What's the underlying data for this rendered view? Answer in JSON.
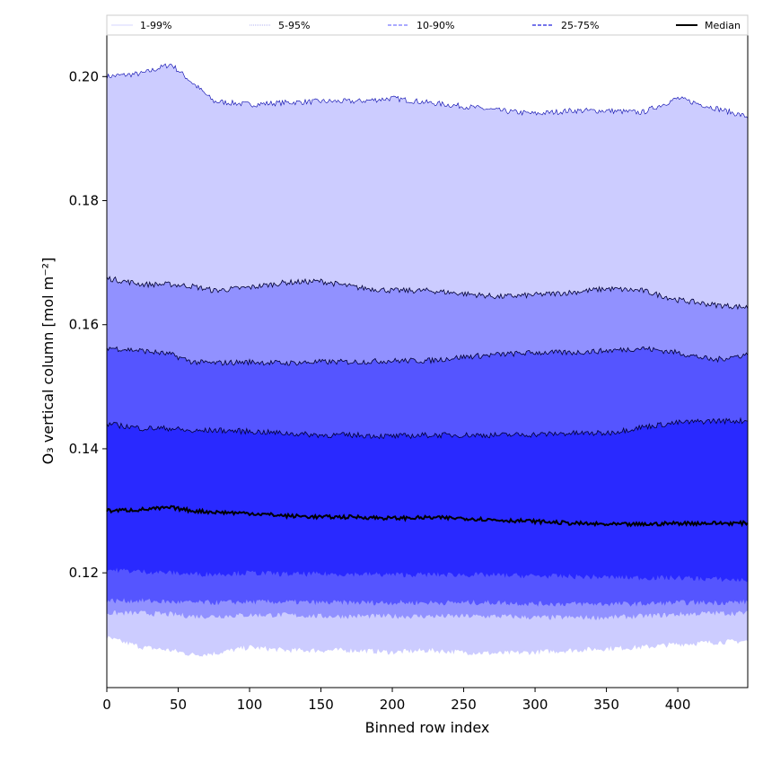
{
  "chart_data": {
    "type": "area",
    "xlabel": "Binned row index",
    "ylabel": "O₃ vertical column [mol m⁻²]",
    "xlim": [
      0,
      449
    ],
    "ylim": [
      0.1015,
      0.2067
    ],
    "xticks": [
      0,
      50,
      100,
      150,
      200,
      250,
      300,
      350,
      400
    ],
    "yticks": [
      0.12,
      0.14,
      0.16,
      0.18,
      0.2
    ],
    "ytick_labels": [
      "0.12",
      "0.14",
      "0.16",
      "0.18",
      "0.20"
    ],
    "legend_position": "top (horizontal, spanning plot)",
    "legend": [
      {
        "label": "1-99%",
        "color": "#c8c8ff",
        "style": "solid-thin"
      },
      {
        "label": "5-95%",
        "color": "#9999ee",
        "style": "dotted"
      },
      {
        "label": "10-90%",
        "color": "#7777ff",
        "style": "dashed"
      },
      {
        "label": "25-75%",
        "color": "#2222dd",
        "style": "dashed"
      },
      {
        "label": "Median",
        "color": "#000000",
        "style": "solid-thick"
      }
    ],
    "fill_colors": {
      "p1_99": "#ccccff",
      "p5_95": "#9191ff",
      "p10_90": "#5555ff",
      "p25_75": "#2929ff"
    },
    "x": [
      0,
      25,
      45,
      60,
      75,
      100,
      125,
      150,
      175,
      200,
      225,
      250,
      275,
      300,
      325,
      350,
      375,
      400,
      425,
      449
    ],
    "series": [
      {
        "name": "1-99%",
        "lower": [
          0.1095,
          0.108,
          0.1075,
          0.1068,
          0.107,
          0.108,
          0.1075,
          0.1075,
          0.1075,
          0.1072,
          0.1075,
          0.1072,
          0.107,
          0.1072,
          0.1075,
          0.1078,
          0.108,
          0.1085,
          0.1088,
          0.109
        ],
        "upper": [
          0.2,
          0.2005,
          0.202,
          0.199,
          0.196,
          0.1955,
          0.1958,
          0.196,
          0.196,
          0.1965,
          0.1958,
          0.1952,
          0.1945,
          0.194,
          0.1945,
          0.1945,
          0.1942,
          0.1965,
          0.195,
          0.1935
        ]
      },
      {
        "name": "5-95%",
        "lower": [
          0.1135,
          0.1135,
          0.1133,
          0.113,
          0.113,
          0.1132,
          0.1132,
          0.113,
          0.113,
          0.113,
          0.113,
          0.113,
          0.113,
          0.1128,
          0.1128,
          0.1128,
          0.113,
          0.1133,
          0.1135,
          0.1135
        ],
        "upper": [
          0.1675,
          0.1665,
          0.1665,
          0.1662,
          0.1655,
          0.166,
          0.1668,
          0.167,
          0.166,
          0.1655,
          0.1655,
          0.165,
          0.1645,
          0.1648,
          0.1652,
          0.1658,
          0.1655,
          0.164,
          0.1632,
          0.1628
        ]
      },
      {
        "name": "10-90%",
        "lower": [
          0.1155,
          0.1155,
          0.1153,
          0.1152,
          0.1152,
          0.1153,
          0.1153,
          0.1152,
          0.1152,
          0.1152,
          0.1152,
          0.1152,
          0.1152,
          0.115,
          0.115,
          0.115,
          0.115,
          0.1152,
          0.1152,
          0.1153
        ],
        "upper": [
          0.1563,
          0.1558,
          0.1552,
          0.154,
          0.1538,
          0.154,
          0.1538,
          0.154,
          0.154,
          0.1542,
          0.1542,
          0.1548,
          0.1552,
          0.1555,
          0.1555,
          0.1558,
          0.1562,
          0.1555,
          0.1543,
          0.1552
        ]
      },
      {
        "name": "25-75%",
        "lower": [
          0.1205,
          0.1202,
          0.12,
          0.1198,
          0.1198,
          0.12,
          0.1198,
          0.1198,
          0.1198,
          0.1197,
          0.1197,
          0.1197,
          0.1196,
          0.1195,
          0.1194,
          0.1193,
          0.1192,
          0.1192,
          0.119,
          0.1188
        ],
        "upper": [
          0.144,
          0.1433,
          0.1433,
          0.1428,
          0.143,
          0.1428,
          0.1425,
          0.1422,
          0.1422,
          0.142,
          0.1422,
          0.1422,
          0.1422,
          0.1423,
          0.1425,
          0.1425,
          0.1435,
          0.1442,
          0.1445,
          0.1445
        ]
      },
      {
        "name": "Median",
        "values": [
          0.13,
          0.1302,
          0.1305,
          0.13,
          0.1298,
          0.1296,
          0.1292,
          0.129,
          0.129,
          0.1288,
          0.1289,
          0.1288,
          0.1285,
          0.1283,
          0.128,
          0.1278,
          0.1278,
          0.128,
          0.128,
          0.128
        ]
      }
    ]
  }
}
